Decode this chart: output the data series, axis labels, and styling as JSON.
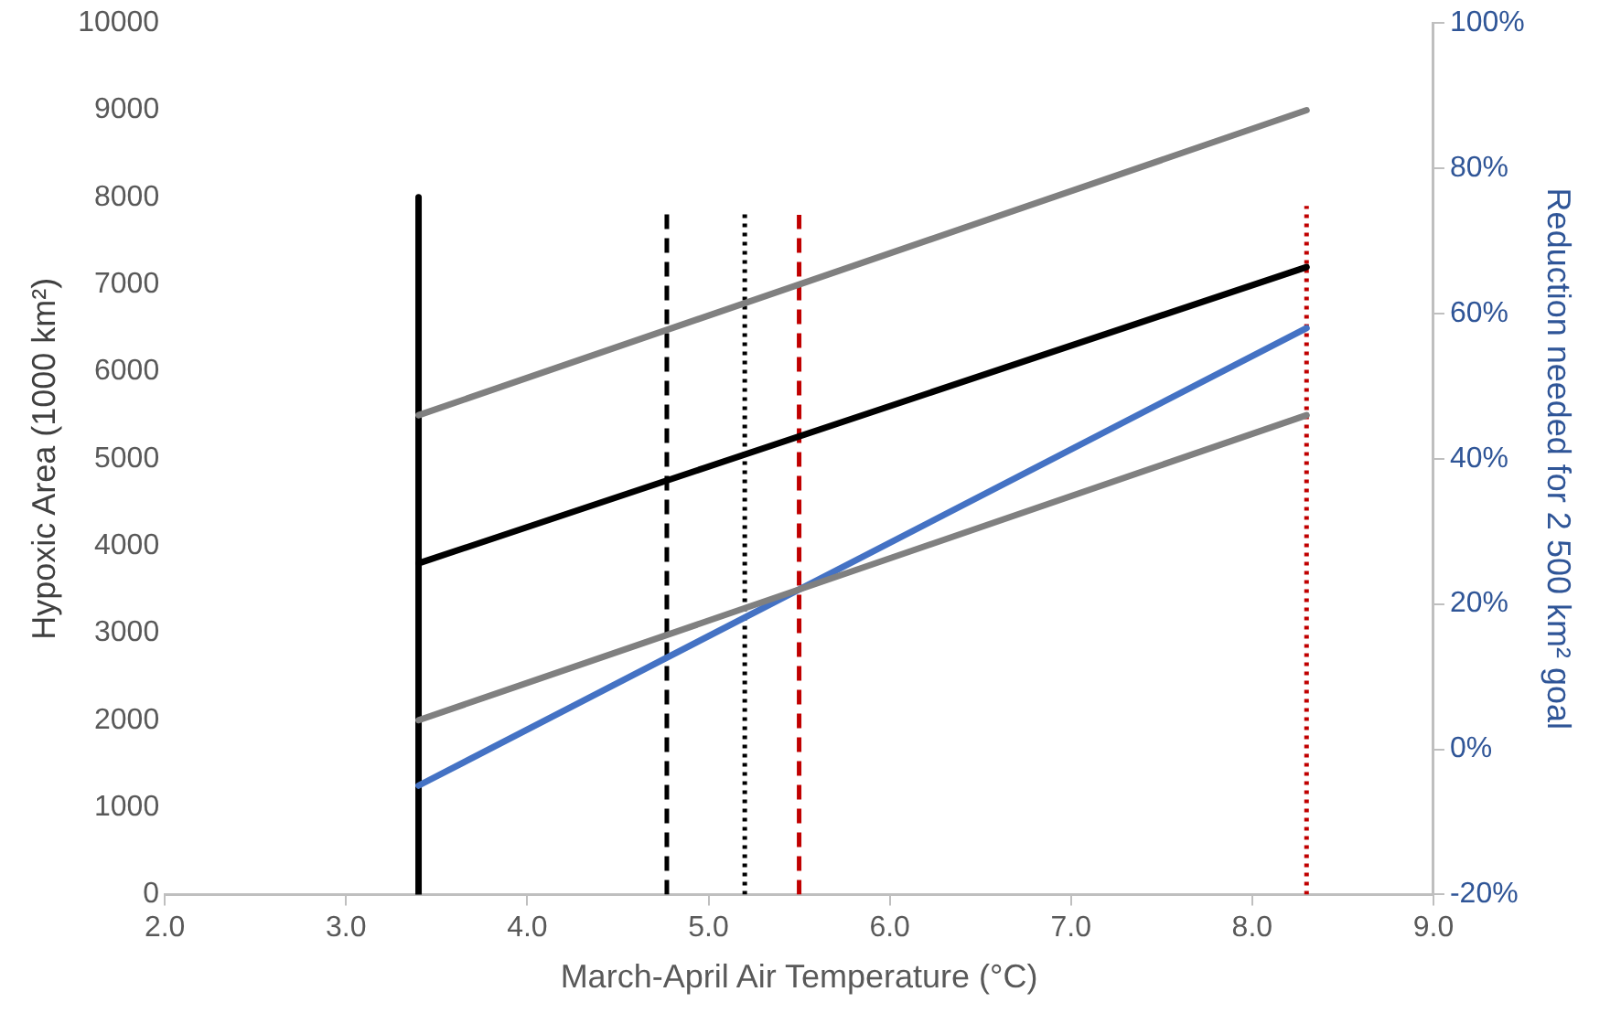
{
  "chart_data": {
    "type": "line",
    "xlabel": "March-April Air Temperature (°C)",
    "ylabel": "Hypoxic Area (1000 km²)",
    "y2label": "Reduction needed for 2 500 km² goal",
    "xlim": [
      2,
      9
    ],
    "xticks": [
      {
        "value": 2,
        "label": "2.0"
      },
      {
        "value": 3,
        "label": "3.0"
      },
      {
        "value": 4,
        "label": "4.0"
      },
      {
        "value": 5,
        "label": "5.0"
      },
      {
        "value": 6,
        "label": "6.0"
      },
      {
        "value": 7,
        "label": "7.0"
      },
      {
        "value": 8,
        "label": "8.0"
      },
      {
        "value": 9,
        "label": "9.0"
      }
    ],
    "ylim": [
      0,
      10000
    ],
    "yticks": [
      0,
      1000,
      2000,
      3000,
      4000,
      5000,
      6000,
      7000,
      8000,
      9000,
      10000
    ],
    "y2lim": [
      -20,
      100
    ],
    "y2ticks": [
      {
        "value": -20,
        "label": "-20%"
      },
      {
        "value": 0,
        "label": "0%"
      },
      {
        "value": 20,
        "label": "20%"
      },
      {
        "value": 40,
        "label": "40%"
      },
      {
        "value": 60,
        "label": "60%"
      },
      {
        "value": 80,
        "label": "80%"
      },
      {
        "value": 100,
        "label": "100%"
      }
    ],
    "grid": false,
    "legend": false,
    "marker": "none",
    "series": [
      {
        "color": "#808080",
        "x": [
          3.4,
          8.3
        ],
        "values": [
          5500,
          9000
        ],
        "line_style": "solid"
      },
      {
        "color": "#000000",
        "x": [
          3.4,
          8.3
        ],
        "values": [
          3800,
          7200
        ],
        "line_style": "solid"
      },
      {
        "color": "#808080",
        "x": [
          3.4,
          8.3
        ],
        "values": [
          2000,
          5500
        ],
        "line_style": "solid"
      },
      {
        "color": "#4472c4",
        "x": [
          3.4,
          8.3
        ],
        "values": [
          -5,
          58
        ],
        "axis": "y2",
        "line_style": "solid"
      },
      {
        "color": "#000000",
        "x": [
          3.4,
          3.4
        ],
        "values": [
          0,
          8000
        ],
        "line_style": "solid"
      },
      {
        "color": "#000000",
        "x": [
          4.77,
          4.77
        ],
        "values": [
          0,
          7850
        ],
        "line_style": "dashed"
      },
      {
        "color": "#000000",
        "x": [
          5.2,
          5.2
        ],
        "values": [
          0,
          7850
        ],
        "line_style": "dotted"
      },
      {
        "color": "#c00000",
        "x": [
          5.5,
          5.5
        ],
        "values": [
          0,
          7800
        ],
        "line_style": "dashed"
      },
      {
        "color": "#c00000",
        "x": [
          8.3,
          8.3
        ],
        "values": [
          0,
          7900
        ],
        "line_style": "dotted"
      }
    ]
  }
}
